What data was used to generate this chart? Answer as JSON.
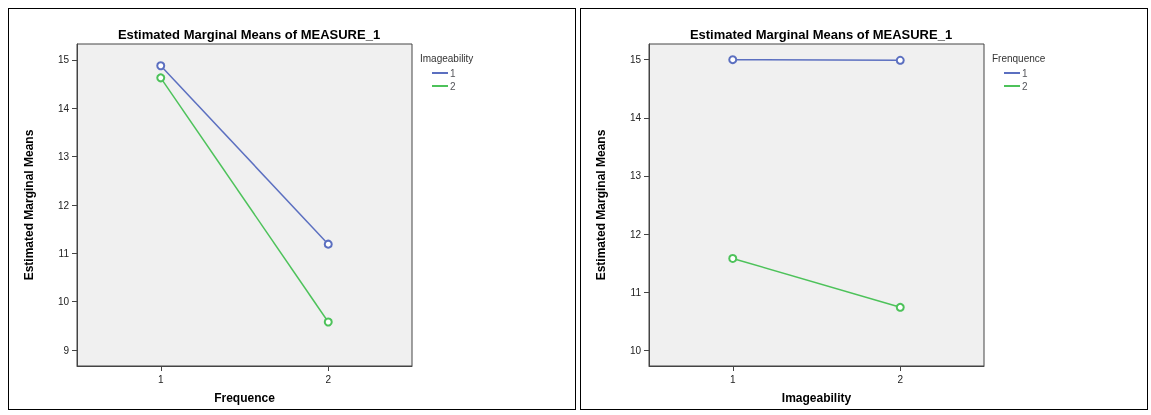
{
  "chart_data": [
    {
      "type": "line",
      "title": "Estimated Marginal Means of MEASURE_1",
      "xlabel": "Frequence",
      "ylabel": "Estimated Marginal Means",
      "legend_title": "Imageability",
      "categories": [
        "1",
        "2"
      ],
      "series": [
        {
          "name": "1",
          "color": "#5b6fc0",
          "values": [
            14.88,
            11.19
          ]
        },
        {
          "name": "2",
          "color": "#4dc25a",
          "values": [
            14.63,
            9.58
          ]
        }
      ],
      "ylim": [
        8.67,
        15.33
      ],
      "yticks": [
        9,
        10,
        11,
        12,
        13,
        14,
        15
      ],
      "grid": false,
      "legend": "top right",
      "marker": "circle",
      "line_style": "solid"
    },
    {
      "type": "line",
      "title": "Estimated Marginal Means of MEASURE_1",
      "xlabel": "Imageability",
      "ylabel": "Estimated Marginal Means",
      "legend_title": "Frenquence",
      "categories": [
        "1",
        "2"
      ],
      "series": [
        {
          "name": "1",
          "color": "#5b6fc0",
          "values": [
            15.0,
            14.99
          ]
        },
        {
          "name": "2",
          "color": "#4dc25a",
          "values": [
            11.58,
            10.74
          ]
        }
      ],
      "ylim": [
        9.73,
        15.27
      ],
      "yticks": [
        10,
        11,
        12,
        13,
        14,
        15
      ],
      "grid": false,
      "legend": "top right",
      "marker": "circle",
      "line_style": "solid"
    }
  ]
}
